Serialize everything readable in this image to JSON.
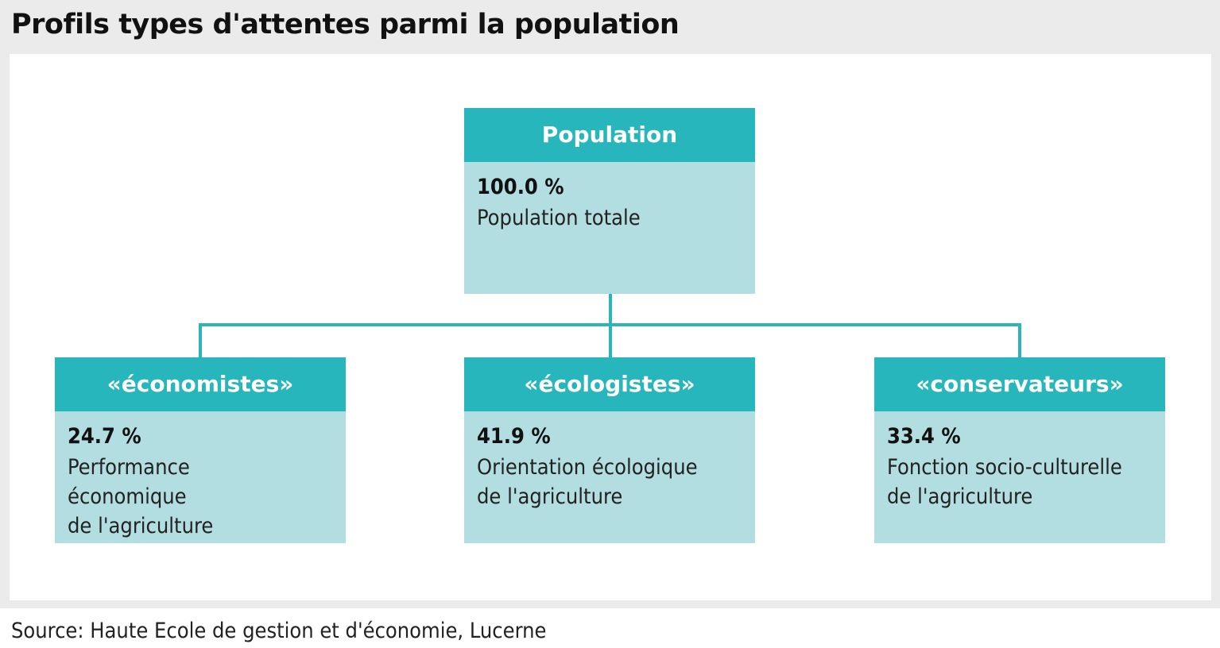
{
  "title": "Profils types d'attentes parmi la population",
  "root": {
    "header": "Population",
    "percent": "100.0 %",
    "description": "Population totale"
  },
  "children": [
    {
      "header": "«économistes»",
      "percent": "24.7 %",
      "description": "Performance\néconomique\nde l'agriculture"
    },
    {
      "header": "«écologistes»",
      "percent": "41.9 %",
      "description": "Orientation écologique\nde l'agriculture"
    },
    {
      "header": "«conservateurs»",
      "percent": "33.4 %",
      "description": "Fonction socio-culturelle\nde l'agriculture"
    }
  ],
  "source": "Source: Haute Ecole de gestion et d'économie, Lucerne",
  "colors": {
    "header_fill": "#26b6bb",
    "body_fill": "#b2dde1",
    "connector": "#2bb5ba",
    "background": "#ebebeb"
  }
}
